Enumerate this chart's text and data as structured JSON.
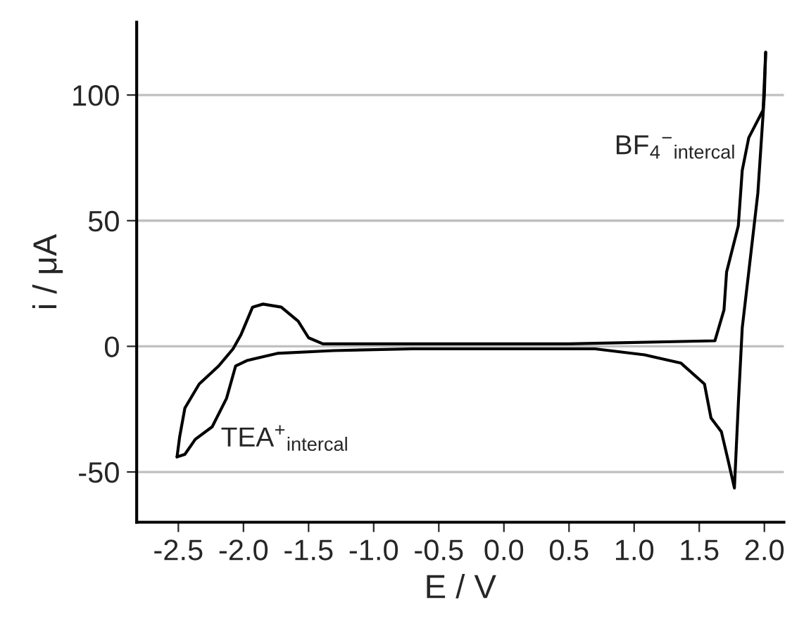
{
  "chart_data": {
    "type": "line",
    "xlabel": "E / V",
    "ylabel": "i / μA",
    "series": [
      {
        "color": "#000000",
        "x": [
          -2.51,
          -2.49,
          -2.45,
          -2.34,
          -2.19,
          -2.08,
          -2.02,
          -1.93,
          -1.85,
          -1.71,
          -1.58,
          -1.5,
          -1.39,
          -0.5,
          0.5,
          1.62,
          1.69,
          1.71,
          1.8,
          1.83,
          1.88,
          1.99,
          2.01
        ],
        "values": [
          -44,
          -36,
          -24.6,
          -15,
          -7.8,
          -1,
          4.5,
          15.6,
          16.8,
          15.6,
          10,
          3.4,
          1,
          1,
          1,
          2.2,
          14.5,
          29.6,
          48,
          70,
          83,
          94,
          117
        ]
      },
      {
        "color": "#000000",
        "x": [
          -2.51,
          -2.45,
          -2.37,
          -2.24,
          -2.13,
          -2.06,
          -1.97,
          -1.74,
          -1.31,
          -0.7,
          0.0,
          0.7,
          1.08,
          1.36,
          1.54,
          1.59,
          1.67,
          1.72,
          1.77,
          1.8,
          1.83,
          1.88,
          1.95,
          2.0,
          2.01
        ],
        "values": [
          -44,
          -43,
          -37,
          -32,
          -20.7,
          -7.8,
          -5.6,
          -2.8,
          -1.7,
          -1,
          -1,
          -1,
          -3.4,
          -6.7,
          -15,
          -28.5,
          -34,
          -45,
          -56.4,
          -23,
          7.3,
          29.6,
          61,
          100,
          117
        ]
      }
    ],
    "xlim": [
      -2.82,
      2.15
    ],
    "ylim": [
      -70,
      129
    ],
    "xticks": [
      -2.5,
      {
        "value": -2,
        "label": "-2.0"
      },
      -1.5,
      {
        "value": -1,
        "label": "-1.0"
      },
      -0.5,
      {
        "value": 0,
        "label": "0.0"
      },
      0.5,
      {
        "value": 1,
        "label": "1.0"
      },
      1.5,
      {
        "value": 2,
        "label": "2.0"
      }
    ],
    "yticks": [
      -50,
      0,
      50,
      100
    ],
    "grid": "y",
    "annotations": [
      "TEA$^{+}$$_{intercal}$",
      "BF$_{4}$$^{−}$$_{intercal}$"
    ]
  }
}
